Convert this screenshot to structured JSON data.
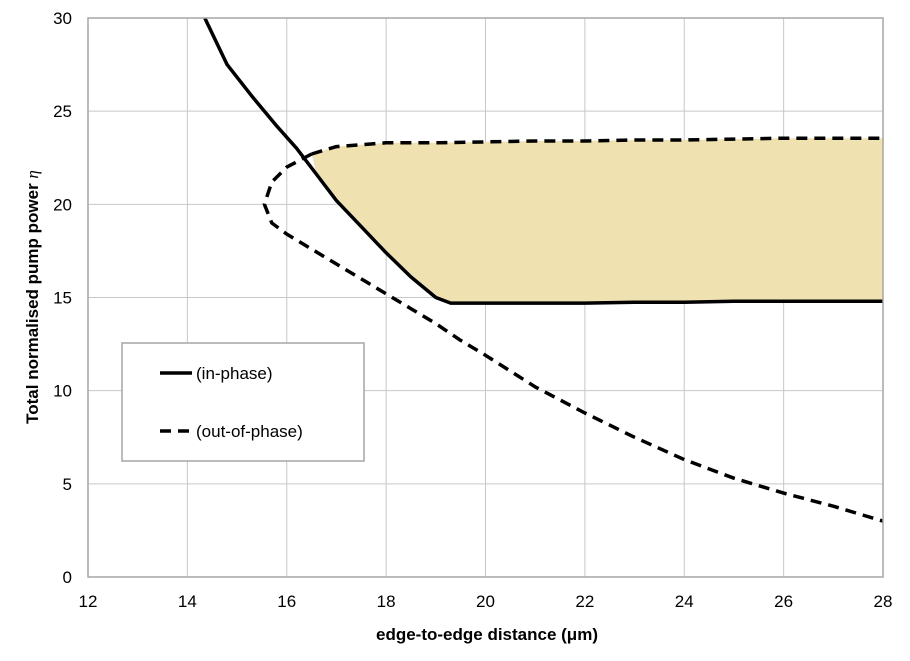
{
  "chart_data": {
    "type": "line",
    "xlabel": "edge-to-edge distance (μm)",
    "ylabel_prefix": "Total normalised pump power",
    "ylabel_symbol": "η",
    "xlim": [
      12,
      28
    ],
    "ylim": [
      0,
      30
    ],
    "xticks": [
      12,
      14,
      16,
      18,
      20,
      22,
      24,
      26,
      28
    ],
    "yticks": [
      0,
      5,
      10,
      15,
      20,
      25,
      30
    ],
    "grid": true,
    "legend_placement": "left-middle",
    "shaded_region_color": "#f0e2b0",
    "series": [
      {
        "name": "(in-phase)",
        "style": "solid",
        "color": "#000000",
        "points": [
          [
            14.35,
            30.0
          ],
          [
            14.8,
            27.5
          ],
          [
            15.3,
            25.8
          ],
          [
            15.8,
            24.2
          ],
          [
            16.2,
            23.0
          ],
          [
            16.6,
            21.6
          ],
          [
            17.0,
            20.2
          ],
          [
            17.5,
            18.8
          ],
          [
            18.0,
            17.4
          ],
          [
            18.5,
            16.1
          ],
          [
            19.0,
            15.0
          ],
          [
            19.3,
            14.7
          ],
          [
            20.0,
            14.7
          ],
          [
            21.0,
            14.7
          ],
          [
            22.0,
            14.7
          ],
          [
            23.0,
            14.75
          ],
          [
            24.0,
            14.75
          ],
          [
            25.0,
            14.8
          ],
          [
            26.0,
            14.8
          ],
          [
            27.0,
            14.8
          ],
          [
            28.0,
            14.8
          ]
        ]
      },
      {
        "name": "(out-of-phase)",
        "style": "dashed",
        "color": "#000000",
        "points": [
          [
            16.5,
            22.7
          ],
          [
            16.0,
            22.0
          ],
          [
            15.7,
            21.2
          ],
          [
            15.55,
            20.0
          ],
          [
            15.7,
            19.0
          ],
          [
            16.0,
            18.4
          ],
          [
            16.5,
            17.6
          ],
          [
            17.0,
            16.8
          ],
          [
            17.5,
            16.0
          ],
          [
            18.0,
            15.2
          ],
          [
            18.5,
            14.4
          ],
          [
            19.0,
            13.6
          ],
          [
            19.5,
            12.7
          ],
          [
            20.0,
            11.9
          ],
          [
            21.0,
            10.2
          ],
          [
            22.0,
            8.8
          ],
          [
            23.0,
            7.5
          ],
          [
            24.0,
            6.3
          ],
          [
            25.0,
            5.3
          ],
          [
            26.0,
            4.5
          ],
          [
            27.0,
            3.8
          ],
          [
            28.0,
            3.0
          ]
        ]
      },
      {
        "name": "",
        "style": "dashed",
        "color": "#000000",
        "points": [
          [
            16.5,
            22.7
          ],
          [
            17.0,
            23.1
          ],
          [
            18.0,
            23.3
          ],
          [
            19.0,
            23.3
          ],
          [
            20.0,
            23.35
          ],
          [
            21.0,
            23.4
          ],
          [
            22.0,
            23.4
          ],
          [
            23.0,
            23.45
          ],
          [
            24.0,
            23.45
          ],
          [
            25.0,
            23.5
          ],
          [
            26.0,
            23.55
          ],
          [
            27.0,
            23.55
          ],
          [
            28.0,
            23.55
          ]
        ]
      }
    ]
  }
}
